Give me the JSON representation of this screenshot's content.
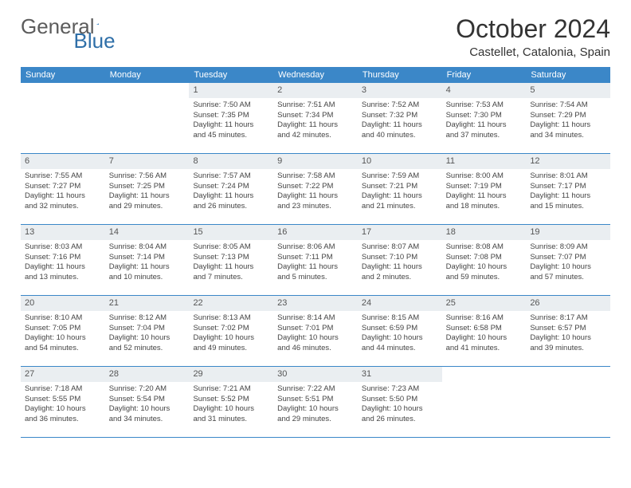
{
  "logo": {
    "general": "General",
    "blue": "Blue"
  },
  "title": "October 2024",
  "location": "Castellet, Catalonia, Spain",
  "colors": {
    "header_bar": "#3b87c8",
    "header_text": "#ffffff",
    "daynum_bg": "#eaeef1",
    "border": "#3b87c8",
    "body_text": "#444444",
    "title_text": "#333333",
    "logo_blue": "#2f6fa8",
    "logo_gray": "#5c5c5c",
    "background": "#ffffff"
  },
  "typography": {
    "title_fontsize": 32,
    "location_fontsize": 15,
    "weekday_fontsize": 11,
    "daynum_fontsize": 11,
    "body_fontsize": 9.5
  },
  "weekdays": [
    "Sunday",
    "Monday",
    "Tuesday",
    "Wednesday",
    "Thursday",
    "Friday",
    "Saturday"
  ],
  "weeks": [
    [
      null,
      null,
      {
        "n": "1",
        "sr": "Sunrise: 7:50 AM",
        "ss": "Sunset: 7:35 PM",
        "d1": "Daylight: 11 hours",
        "d2": "and 45 minutes."
      },
      {
        "n": "2",
        "sr": "Sunrise: 7:51 AM",
        "ss": "Sunset: 7:34 PM",
        "d1": "Daylight: 11 hours",
        "d2": "and 42 minutes."
      },
      {
        "n": "3",
        "sr": "Sunrise: 7:52 AM",
        "ss": "Sunset: 7:32 PM",
        "d1": "Daylight: 11 hours",
        "d2": "and 40 minutes."
      },
      {
        "n": "4",
        "sr": "Sunrise: 7:53 AM",
        "ss": "Sunset: 7:30 PM",
        "d1": "Daylight: 11 hours",
        "d2": "and 37 minutes."
      },
      {
        "n": "5",
        "sr": "Sunrise: 7:54 AM",
        "ss": "Sunset: 7:29 PM",
        "d1": "Daylight: 11 hours",
        "d2": "and 34 minutes."
      }
    ],
    [
      {
        "n": "6",
        "sr": "Sunrise: 7:55 AM",
        "ss": "Sunset: 7:27 PM",
        "d1": "Daylight: 11 hours",
        "d2": "and 32 minutes."
      },
      {
        "n": "7",
        "sr": "Sunrise: 7:56 AM",
        "ss": "Sunset: 7:25 PM",
        "d1": "Daylight: 11 hours",
        "d2": "and 29 minutes."
      },
      {
        "n": "8",
        "sr": "Sunrise: 7:57 AM",
        "ss": "Sunset: 7:24 PM",
        "d1": "Daylight: 11 hours",
        "d2": "and 26 minutes."
      },
      {
        "n": "9",
        "sr": "Sunrise: 7:58 AM",
        "ss": "Sunset: 7:22 PM",
        "d1": "Daylight: 11 hours",
        "d2": "and 23 minutes."
      },
      {
        "n": "10",
        "sr": "Sunrise: 7:59 AM",
        "ss": "Sunset: 7:21 PM",
        "d1": "Daylight: 11 hours",
        "d2": "and 21 minutes."
      },
      {
        "n": "11",
        "sr": "Sunrise: 8:00 AM",
        "ss": "Sunset: 7:19 PM",
        "d1": "Daylight: 11 hours",
        "d2": "and 18 minutes."
      },
      {
        "n": "12",
        "sr": "Sunrise: 8:01 AM",
        "ss": "Sunset: 7:17 PM",
        "d1": "Daylight: 11 hours",
        "d2": "and 15 minutes."
      }
    ],
    [
      {
        "n": "13",
        "sr": "Sunrise: 8:03 AM",
        "ss": "Sunset: 7:16 PM",
        "d1": "Daylight: 11 hours",
        "d2": "and 13 minutes."
      },
      {
        "n": "14",
        "sr": "Sunrise: 8:04 AM",
        "ss": "Sunset: 7:14 PM",
        "d1": "Daylight: 11 hours",
        "d2": "and 10 minutes."
      },
      {
        "n": "15",
        "sr": "Sunrise: 8:05 AM",
        "ss": "Sunset: 7:13 PM",
        "d1": "Daylight: 11 hours",
        "d2": "and 7 minutes."
      },
      {
        "n": "16",
        "sr": "Sunrise: 8:06 AM",
        "ss": "Sunset: 7:11 PM",
        "d1": "Daylight: 11 hours",
        "d2": "and 5 minutes."
      },
      {
        "n": "17",
        "sr": "Sunrise: 8:07 AM",
        "ss": "Sunset: 7:10 PM",
        "d1": "Daylight: 11 hours",
        "d2": "and 2 minutes."
      },
      {
        "n": "18",
        "sr": "Sunrise: 8:08 AM",
        "ss": "Sunset: 7:08 PM",
        "d1": "Daylight: 10 hours",
        "d2": "and 59 minutes."
      },
      {
        "n": "19",
        "sr": "Sunrise: 8:09 AM",
        "ss": "Sunset: 7:07 PM",
        "d1": "Daylight: 10 hours",
        "d2": "and 57 minutes."
      }
    ],
    [
      {
        "n": "20",
        "sr": "Sunrise: 8:10 AM",
        "ss": "Sunset: 7:05 PM",
        "d1": "Daylight: 10 hours",
        "d2": "and 54 minutes."
      },
      {
        "n": "21",
        "sr": "Sunrise: 8:12 AM",
        "ss": "Sunset: 7:04 PM",
        "d1": "Daylight: 10 hours",
        "d2": "and 52 minutes."
      },
      {
        "n": "22",
        "sr": "Sunrise: 8:13 AM",
        "ss": "Sunset: 7:02 PM",
        "d1": "Daylight: 10 hours",
        "d2": "and 49 minutes."
      },
      {
        "n": "23",
        "sr": "Sunrise: 8:14 AM",
        "ss": "Sunset: 7:01 PM",
        "d1": "Daylight: 10 hours",
        "d2": "and 46 minutes."
      },
      {
        "n": "24",
        "sr": "Sunrise: 8:15 AM",
        "ss": "Sunset: 6:59 PM",
        "d1": "Daylight: 10 hours",
        "d2": "and 44 minutes."
      },
      {
        "n": "25",
        "sr": "Sunrise: 8:16 AM",
        "ss": "Sunset: 6:58 PM",
        "d1": "Daylight: 10 hours",
        "d2": "and 41 minutes."
      },
      {
        "n": "26",
        "sr": "Sunrise: 8:17 AM",
        "ss": "Sunset: 6:57 PM",
        "d1": "Daylight: 10 hours",
        "d2": "and 39 minutes."
      }
    ],
    [
      {
        "n": "27",
        "sr": "Sunrise: 7:18 AM",
        "ss": "Sunset: 5:55 PM",
        "d1": "Daylight: 10 hours",
        "d2": "and 36 minutes."
      },
      {
        "n": "28",
        "sr": "Sunrise: 7:20 AM",
        "ss": "Sunset: 5:54 PM",
        "d1": "Daylight: 10 hours",
        "d2": "and 34 minutes."
      },
      {
        "n": "29",
        "sr": "Sunrise: 7:21 AM",
        "ss": "Sunset: 5:52 PM",
        "d1": "Daylight: 10 hours",
        "d2": "and 31 minutes."
      },
      {
        "n": "30",
        "sr": "Sunrise: 7:22 AM",
        "ss": "Sunset: 5:51 PM",
        "d1": "Daylight: 10 hours",
        "d2": "and 29 minutes."
      },
      {
        "n": "31",
        "sr": "Sunrise: 7:23 AM",
        "ss": "Sunset: 5:50 PM",
        "d1": "Daylight: 10 hours",
        "d2": "and 26 minutes."
      },
      null,
      null
    ]
  ]
}
